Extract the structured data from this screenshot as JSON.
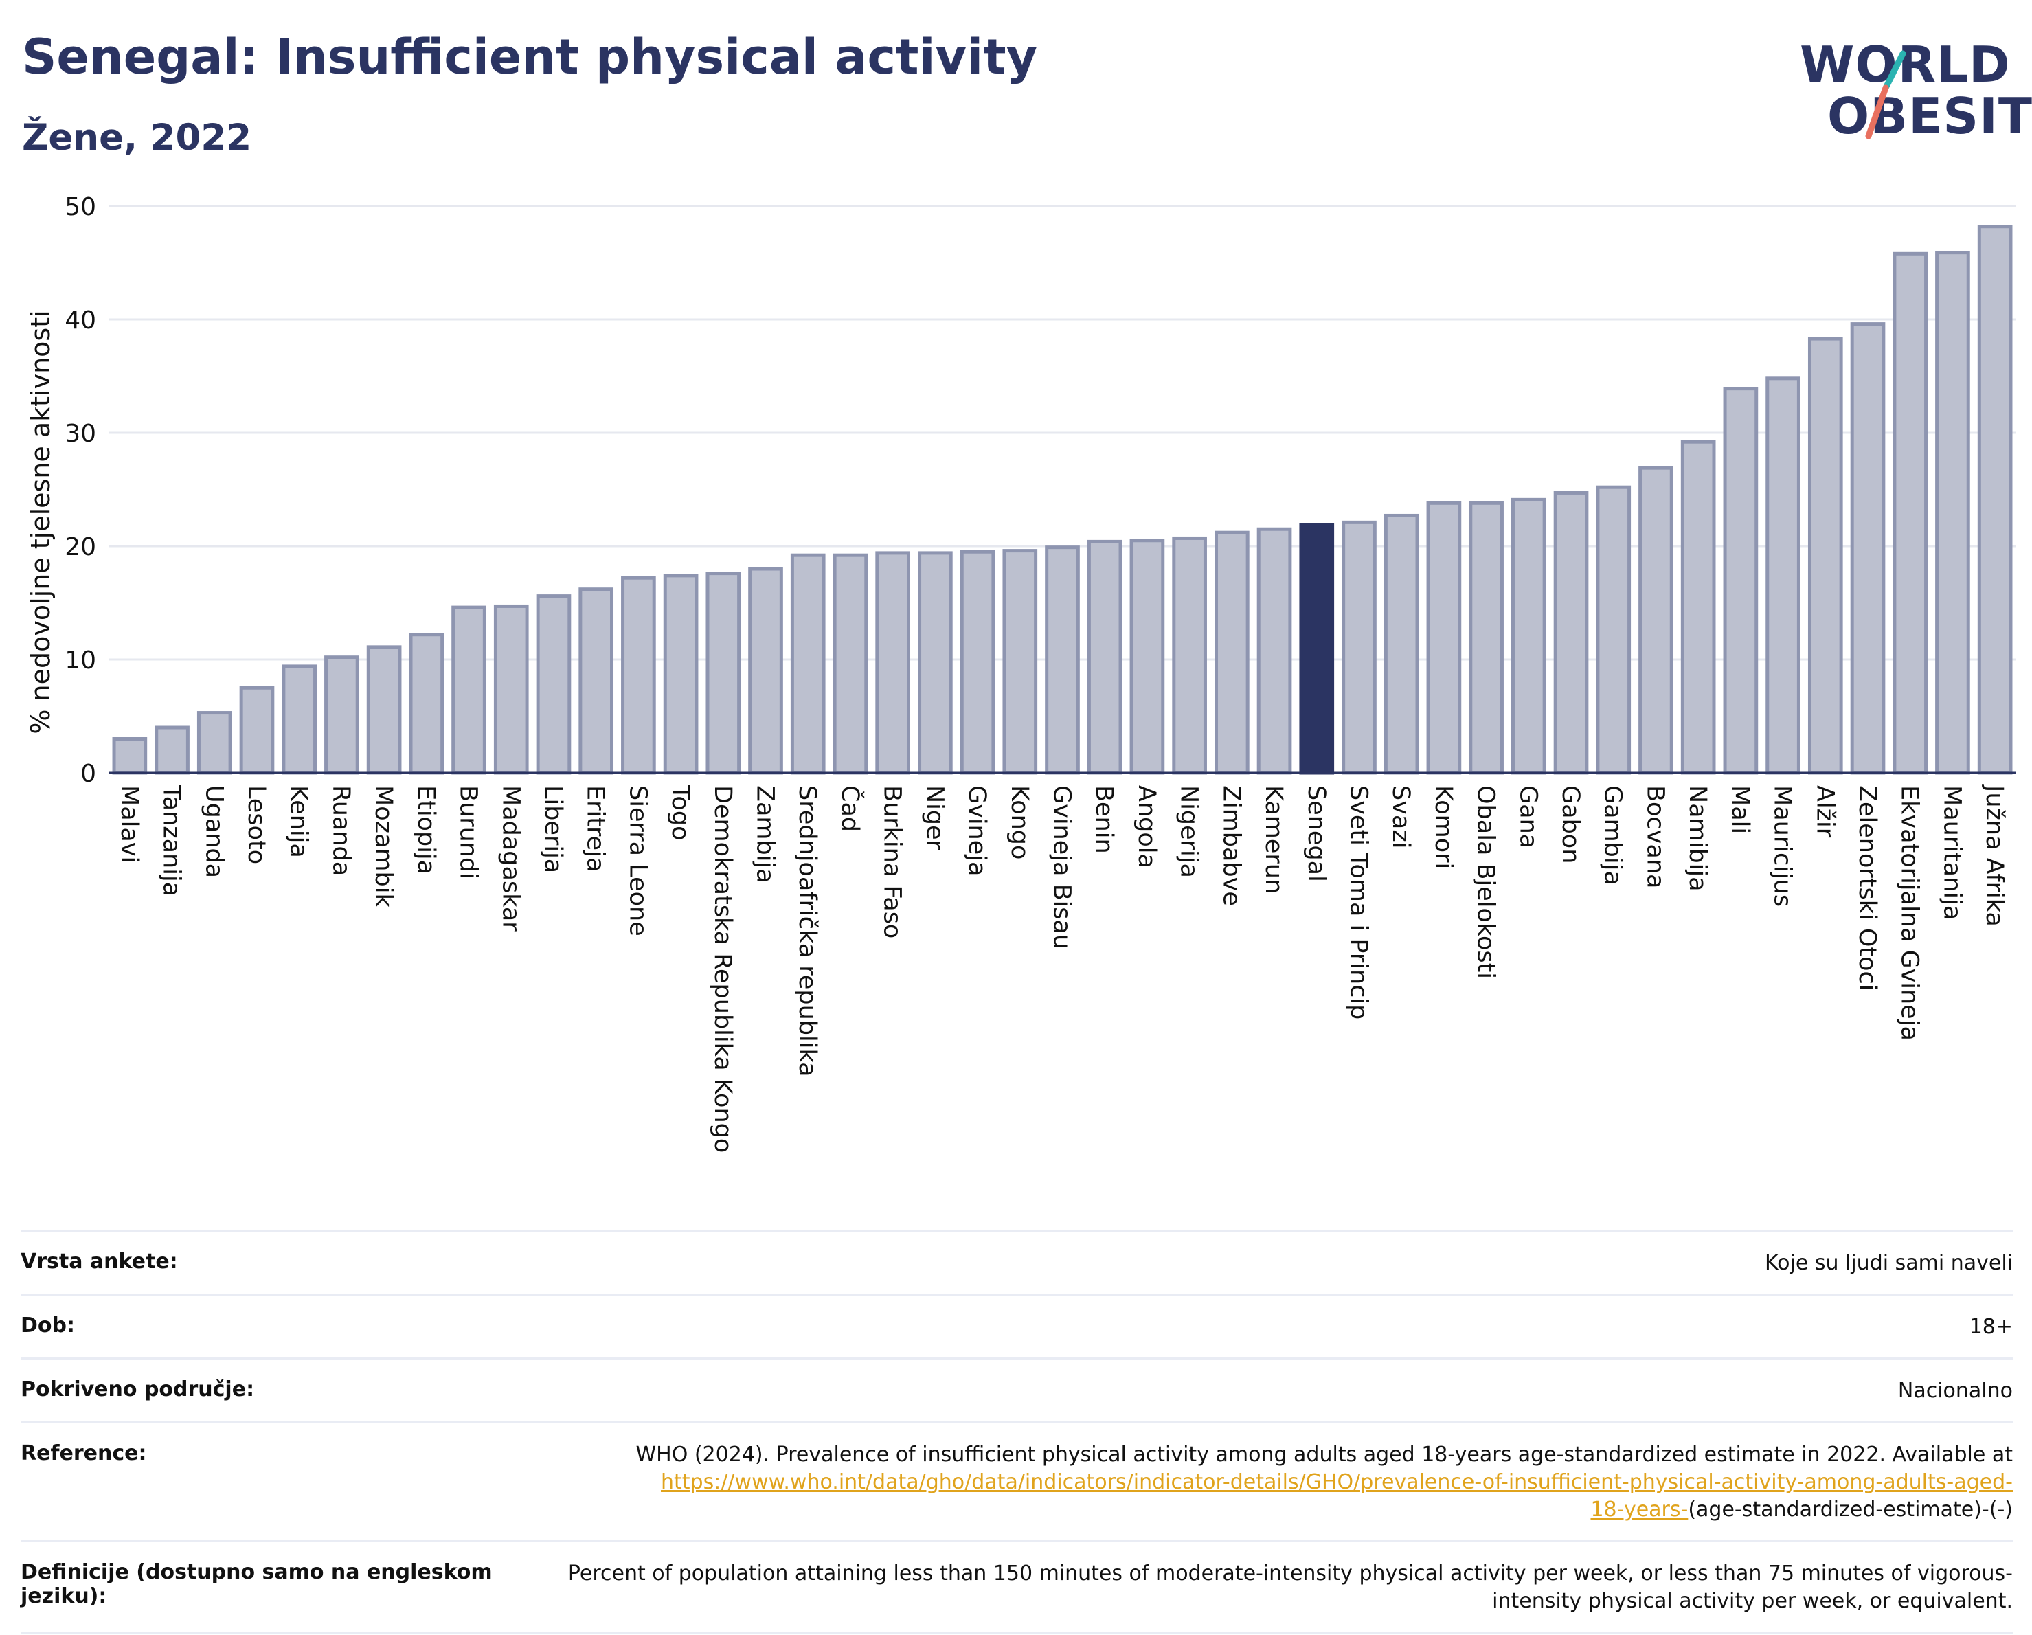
{
  "header": {
    "title": "Senegal: Insufficient physical activity",
    "subtitle": "Žene, 2022"
  },
  "logo": {
    "line1": "WORLD",
    "line2": "OBESITY",
    "colors": {
      "text": "#2b3462",
      "slash_top": "#2bb3b1",
      "slash_bottom": "#e8705f"
    }
  },
  "chart_data": {
    "type": "bar",
    "title": "",
    "ylabel": "% nedovoljne tjelesne aktivnosti",
    "xlabel": "",
    "ylim": [
      0,
      50
    ],
    "yticks": [
      0,
      10,
      20,
      30,
      40,
      50
    ],
    "grid": true,
    "highlight": "Senegal",
    "colors": {
      "bar": "#bcc0cf",
      "bar_border": "#8e95b0",
      "highlight": "#2b3462"
    },
    "categories": [
      "Malavi",
      "Tanzanija",
      "Uganda",
      "Lesoto",
      "Kenija",
      "Ruanda",
      "Mozambik",
      "Etiopija",
      "Burundi",
      "Madagaskar",
      "Liberija",
      "Eritreja",
      "Sierra Leone",
      "Togo",
      "Demokratska Republika Kongo",
      "Zambija",
      "Srednjoafrička republika",
      "Čad",
      "Burkina Faso",
      "Niger",
      "Gvineja",
      "Kongo",
      "Gvineja Bisau",
      "Benin",
      "Angola",
      "Nigerija",
      "Zimbabve",
      "Kamerun",
      "Senegal",
      "Sveti Toma i Princip",
      "Svazi",
      "Komori",
      "Obala Bjelokosti",
      "Gana",
      "Gabon",
      "Gambija",
      "Bocvana",
      "Namibija",
      "Mali",
      "Mauricijus",
      "Alžir",
      "Zelenortski Otoci",
      "Ekvatorijalna Gvineja",
      "Mauritanija",
      "Južna Afrika"
    ],
    "values": [
      3.0,
      4.0,
      5.3,
      7.5,
      9.4,
      10.2,
      11.1,
      12.2,
      14.6,
      14.7,
      15.6,
      16.2,
      17.2,
      17.4,
      17.6,
      18.0,
      19.2,
      19.2,
      19.4,
      19.4,
      19.5,
      19.6,
      19.9,
      20.4,
      20.5,
      20.7,
      21.2,
      21.5,
      21.9,
      22.1,
      22.7,
      23.8,
      23.8,
      24.1,
      24.7,
      25.2,
      26.9,
      29.2,
      33.9,
      34.8,
      38.3,
      39.6,
      45.8,
      45.9,
      48.2
    ]
  },
  "info": {
    "survey_type": {
      "label": "Vrsta ankete:",
      "value": "Koje su ljudi sami naveli"
    },
    "age": {
      "label": "Dob:",
      "value": "18+"
    },
    "coverage": {
      "label": "Pokriveno područje:",
      "value": "Nacionalno"
    },
    "reference": {
      "label": "Reference:",
      "text": "WHO (2024). Prevalence of insufficient physical activity among adults aged 18-years age-standardized estimate in 2022. Available at",
      "link_line1": "https://www.who.int/data/gho/data/indicators/indicator-details/GHO/prevalence-of-insufficient-physical-activity-among-adults-aged-",
      "link_line2": "18-years-",
      "suffix": "(age-standardized-estimate)-(-)"
    },
    "definitions": {
      "label": "Definicije (dostupno samo na engleskom jeziku):",
      "value": "Percent of population attaining less than 150 minutes of moderate-intensity physical activity per week, or less than 75 minutes of vigorous-intensity physical activity per week, or equivalent."
    }
  }
}
